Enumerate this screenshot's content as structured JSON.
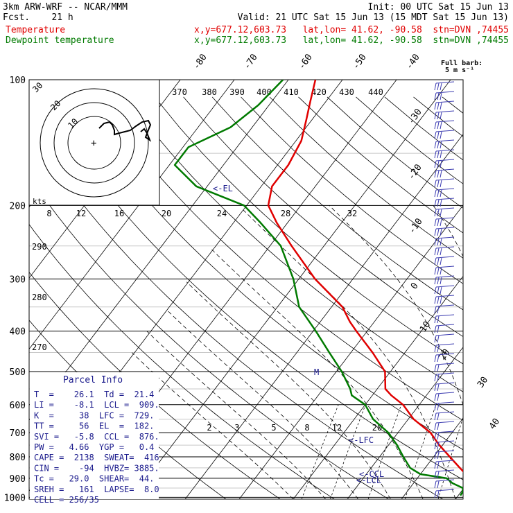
{
  "header": {
    "model": "3km ARW-WRF -- NCAR/MMM",
    "init": "Init: 00 UTC Sat 15 Jun 13",
    "fcst": "Fcst.    21 h",
    "valid": "Valid: 21 UTC Sat 15 Jun 13 (15 MDT Sat 15 Jun 13)",
    "temp_label": "Temperature",
    "temp_loc": "x,y=677.12,603.73   lat,lon= 41.62, -90.58  stn=DVN ,74455",
    "dew_label": "Dewpoint temperature",
    "dew_loc": "x,y=677.12,603.73   lat,lon= 41.62, -90.58  stn=DVN ,74455"
  },
  "colors": {
    "temperature": "#e00000",
    "dewpoint": "#007a00",
    "annotation": "#1a1a8c",
    "wind_barbs": "#3a3ab0"
  },
  "chart_data": {
    "type": "line",
    "plot": "skew-T log-p sounding",
    "pressure_levels": [
      100,
      200,
      300,
      400,
      500,
      600,
      700,
      800,
      900,
      1000
    ],
    "skewed_temperature_labels": [
      -80,
      -70,
      -60,
      -50,
      -40,
      -30,
      -20,
      -10,
      0,
      10,
      20,
      30,
      40
    ],
    "theta_e_labels": [
      370,
      380,
      390,
      400,
      410,
      420,
      430,
      440
    ],
    "theta_labels": [
      290,
      280,
      270
    ],
    "mixing_ratio_labels": [
      "2",
      "3",
      "5",
      "8",
      "12",
      "20"
    ],
    "hodograph": {
      "ring_labels": [
        "30",
        "20",
        "10"
      ],
      "axis_label": "kts"
    },
    "speed_scale_labels": [
      "8",
      "12",
      "16",
      "20",
      "24",
      "28",
      "32"
    ],
    "barb_legend": [
      "Full barb:",
      "5 m s⁻¹"
    ],
    "level_annotations": {
      "el": "<-EL",
      "lfc": "<-LFC",
      "ccl": "<-CCL",
      "lcl": "<-LCL",
      "marker": "M"
    },
    "temperature": [
      [
        1010,
        25.6
      ],
      [
        990,
        22.8
      ],
      [
        960,
        22.0
      ],
      [
        925,
        21.2
      ],
      [
        900,
        19.8
      ],
      [
        880,
        18.4
      ],
      [
        850,
        16.4
      ],
      [
        800,
        13.0
      ],
      [
        750,
        9.4
      ],
      [
        700,
        6.0
      ],
      [
        650,
        1.0
      ],
      [
        600,
        -3.0
      ],
      [
        570,
        -6.5
      ],
      [
        550,
        -8.5
      ],
      [
        500,
        -11.0
      ],
      [
        450,
        -16.0
      ],
      [
        400,
        -22.0
      ],
      [
        380,
        -24.5
      ],
      [
        350,
        -28.0
      ],
      [
        300,
        -37.0
      ],
      [
        250,
        -46.0
      ],
      [
        220,
        -52.0
      ],
      [
        200,
        -56.0
      ],
      [
        180,
        -58.0
      ],
      [
        160,
        -58.0
      ],
      [
        140,
        -59.0
      ],
      [
        125,
        -61.0
      ],
      [
        112,
        -63.0
      ],
      [
        100,
        -65.0
      ]
    ],
    "dewpoint": [
      [
        990,
        20.4
      ],
      [
        970,
        20.3
      ],
      [
        950,
        19.8
      ],
      [
        925,
        17.2
      ],
      [
        900,
        15.4
      ],
      [
        880,
        10.0
      ],
      [
        850,
        7.2
      ],
      [
        800,
        4.4
      ],
      [
        750,
        1.6
      ],
      [
        700,
        -1.8
      ],
      [
        650,
        -6.5
      ],
      [
        600,
        -10.0
      ],
      [
        570,
        -13.8
      ],
      [
        550,
        -15.0
      ],
      [
        500,
        -19.0
      ],
      [
        450,
        -24.0
      ],
      [
        400,
        -29.5
      ],
      [
        350,
        -36.0
      ],
      [
        300,
        -41.0
      ],
      [
        250,
        -48.0
      ],
      [
        220,
        -55.0
      ],
      [
        200,
        -60.5
      ],
      [
        180,
        -72.0
      ],
      [
        160,
        -79.0
      ],
      [
        145,
        -79.0
      ],
      [
        130,
        -74.0
      ],
      [
        115,
        -72.0
      ],
      [
        100,
        -71.0
      ]
    ],
    "parcel_info": {
      "title": "Parcel Info",
      "rows": [
        "T  =    26.1  Td =  21.4",
        "LI =    -8.1  LCL =  909.",
        "K  =     38  LFC =  729.",
        "TT =     56  EL  =  182.",
        "SVI =   -5.8  CCL =  876.",
        "PW =   4.66  YGP =   0.4",
        "CAPE =  2138  SWEAT=  416",
        "CIN =    -94  HVBZ= 3885.",
        "Tc =   29.0  SHEAR=  44.",
        "SREH =   161  LAPSE=  8.0",
        "CELL = 256/35"
      ]
    }
  }
}
